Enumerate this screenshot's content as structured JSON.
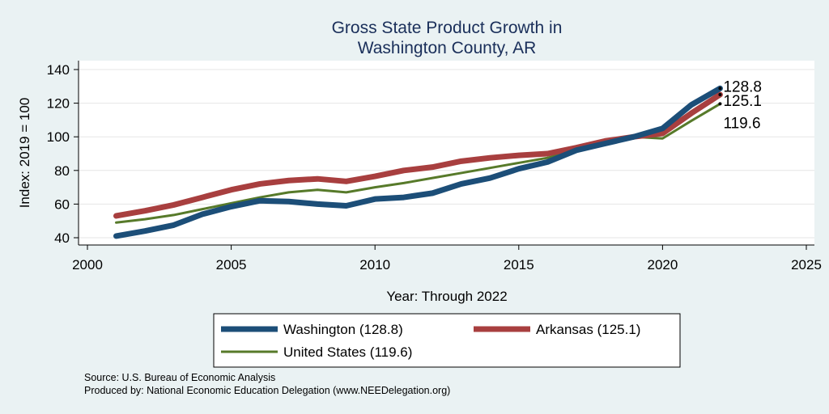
{
  "chart_data": {
    "type": "line",
    "title": [
      "Gross State Product Growth in",
      "Washington County, AR"
    ],
    "xlabel": "Year: Through 2022",
    "ylabel": "Index: 2019 = 100",
    "xlim": [
      2000,
      2025
    ],
    "ylim": [
      35,
      145
    ],
    "xticks": [
      2000,
      2005,
      2010,
      2015,
      2020,
      2025
    ],
    "yticks": [
      40,
      60,
      80,
      100,
      120,
      140
    ],
    "grid": true,
    "x": [
      2001,
      2002,
      2003,
      2004,
      2005,
      2006,
      2007,
      2008,
      2009,
      2010,
      2011,
      2012,
      2013,
      2014,
      2015,
      2016,
      2017,
      2018,
      2019,
      2020,
      2021,
      2022
    ],
    "series": [
      {
        "name": "Washington",
        "legend": "Washington  (128.8)",
        "end_label": "128.8",
        "color": "#1c4e78",
        "values": [
          41,
          44,
          47.5,
          54,
          58.5,
          62,
          61.5,
          60,
          59,
          63,
          64,
          66.5,
          72,
          75.5,
          81,
          85,
          92,
          96,
          100,
          105,
          119,
          128.8
        ]
      },
      {
        "name": "Arkansas",
        "legend": "Arkansas (125.1)",
        "end_label": "125.1",
        "color": "#a83f3f",
        "values": [
          53,
          56,
          59.5,
          64,
          68.5,
          72,
          74,
          75,
          73.5,
          76.5,
          80,
          82,
          85.5,
          87.5,
          89,
          90,
          93.5,
          97.5,
          100,
          102,
          114,
          125.1
        ]
      },
      {
        "name": "United States",
        "legend": "United States (119.6)",
        "end_label": "119.6",
        "color": "#577a2a",
        "values": [
          49,
          51,
          53.5,
          57,
          60.5,
          64,
          67,
          68.5,
          67,
          70,
          72.5,
          75.5,
          78.5,
          81.5,
          84.5,
          87.5,
          92,
          96,
          100,
          99,
          109.5,
          119.6
        ]
      }
    ],
    "legend_position": "bottom"
  },
  "footer": {
    "source": "Source: U.S. Bureau of Economic Analysis",
    "produced_by": "Produced by: National Economic Education Delegation (www.NEEDelegation.org)"
  }
}
